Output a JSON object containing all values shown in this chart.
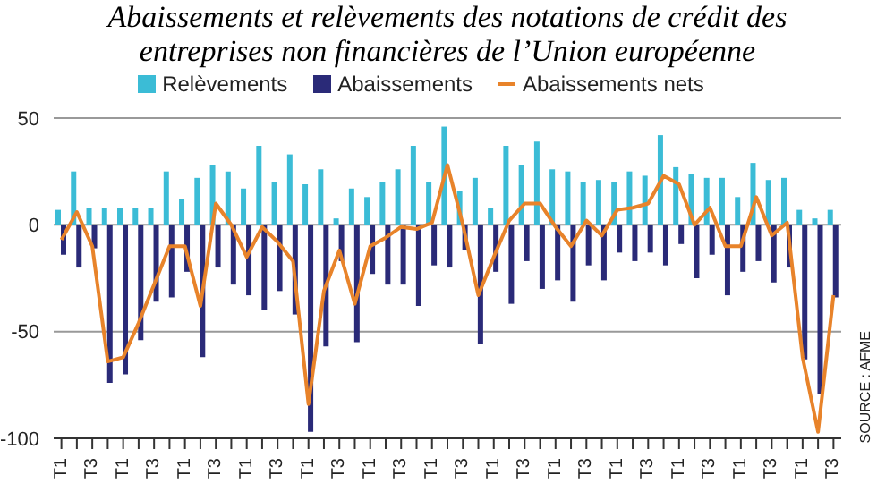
{
  "chart_data": {
    "type": "bar",
    "title": "Abaissements et relèvements des notations de crédit des entreprises non financières de l’Union européenne",
    "categories": [
      "T1",
      null,
      "T3",
      null,
      "T1",
      null,
      "T3",
      null,
      "T1",
      null,
      "T3",
      null,
      "T1",
      null,
      "T3",
      null,
      "T1",
      null,
      "T3",
      null,
      "T1",
      null,
      "T3",
      null,
      "T1",
      null,
      "T3",
      null,
      "T1",
      null,
      "T3",
      null,
      "T1",
      null,
      "T3",
      null,
      "T1",
      null,
      "T3",
      null,
      "T1",
      null,
      "T3",
      null,
      "T1",
      null,
      "T3",
      null,
      "T1",
      null,
      "T3"
    ],
    "series": [
      {
        "name": "Relèvements",
        "color": "#3bbcd6",
        "values": [
          7,
          25,
          8,
          8,
          8,
          8,
          8,
          25,
          12,
          22,
          28,
          25,
          17,
          37,
          20,
          33,
          19,
          26,
          3,
          17,
          13,
          20,
          26,
          37,
          20,
          46,
          16,
          22,
          8,
          37,
          28,
          39,
          26,
          25,
          20,
          21,
          20,
          25,
          23,
          42,
          27,
          24,
          22,
          22,
          13,
          29,
          21,
          22,
          7,
          3,
          7
        ]
      },
      {
        "name": "Abaissements",
        "color": "#2a2a78",
        "values": [
          -14,
          -20,
          -11,
          -74,
          -70,
          -54,
          -36,
          -34,
          -22,
          -62,
          -20,
          -28,
          -33,
          -40,
          -31,
          -42,
          -97,
          -57,
          -17,
          -55,
          -23,
          -28,
          -28,
          -38,
          -19,
          -20,
          -12,
          -56,
          -22,
          -37,
          -17,
          -30,
          -26,
          -36,
          -19,
          -26,
          -13,
          -17,
          -13,
          -19,
          -9,
          -25,
          -14,
          -33,
          -22,
          -17,
          -27,
          -20,
          -63,
          -79,
          -34
        ]
      },
      {
        "name": "Abaissements nets",
        "type": "line",
        "color": "#e8832a",
        "values": [
          -7,
          6,
          -10,
          -64,
          -62,
          -46,
          -28,
          -10,
          -10,
          -38,
          10,
          0,
          -15,
          -1,
          -8,
          -17,
          -84,
          -31,
          -12,
          -37,
          -10,
          -6,
          -1,
          -2,
          1,
          28,
          0,
          -33,
          -15,
          2,
          10,
          10,
          -1,
          -10,
          2,
          -5,
          7,
          8,
          10,
          23,
          19,
          0,
          8,
          -10,
          -10,
          13,
          -5,
          1,
          -62,
          -97,
          -33
        ]
      }
    ],
    "ylim": [
      -100,
      50
    ],
    "yticks": [
      -100,
      -50,
      0,
      50
    ],
    "grid": "y",
    "legend": "top",
    "annotations": [
      "SOURCE : AFME"
    ]
  }
}
